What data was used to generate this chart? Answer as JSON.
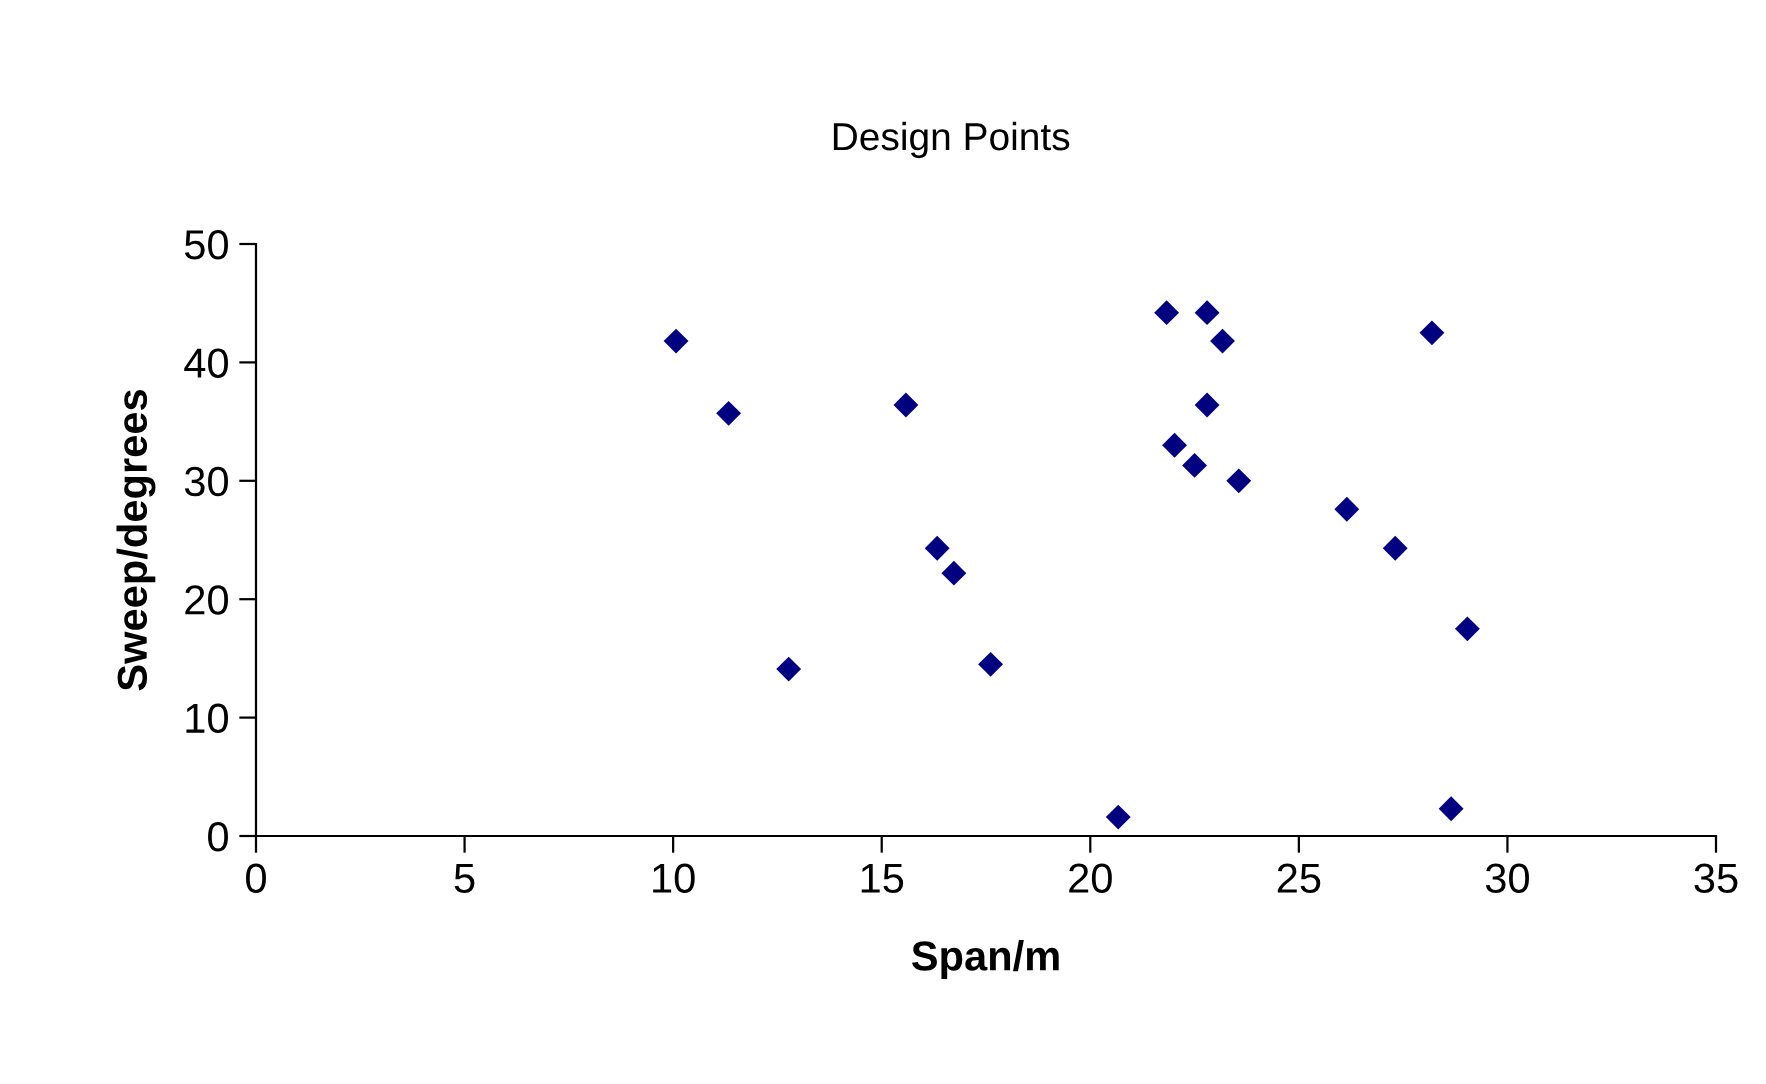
{
  "chart_data": {
    "type": "scatter",
    "title": "Design Points",
    "xlabel": "Span/m",
    "ylabel": "Sweep/degrees",
    "x": [
      10.07,
      11.33,
      12.77,
      15.58,
      16.33,
      16.73,
      17.61,
      21.83,
      22.8,
      23.17,
      22.8,
      22.02,
      22.5,
      23.56,
      26.15,
      27.31,
      28.19,
      29.04,
      28.65,
      20.67
    ],
    "series": [
      {
        "color": "#000080",
        "values": [
          41.8,
          35.7,
          14.1,
          36.4,
          24.3,
          22.2,
          14.5,
          44.2,
          44.2,
          41.8,
          36.4,
          33.0,
          31.3,
          30.0,
          27.6,
          24.3,
          42.5,
          17.5,
          2.3,
          1.6
        ]
      }
    ],
    "xlim": [
      0,
      35
    ],
    "xticks": [
      0,
      5,
      10,
      15,
      20,
      25,
      30,
      35
    ],
    "ylim": [
      0,
      50
    ],
    "yticks": [
      0,
      10,
      20,
      30,
      40,
      50
    ],
    "marker": "diamond",
    "grid": false,
    "legend": false
  }
}
